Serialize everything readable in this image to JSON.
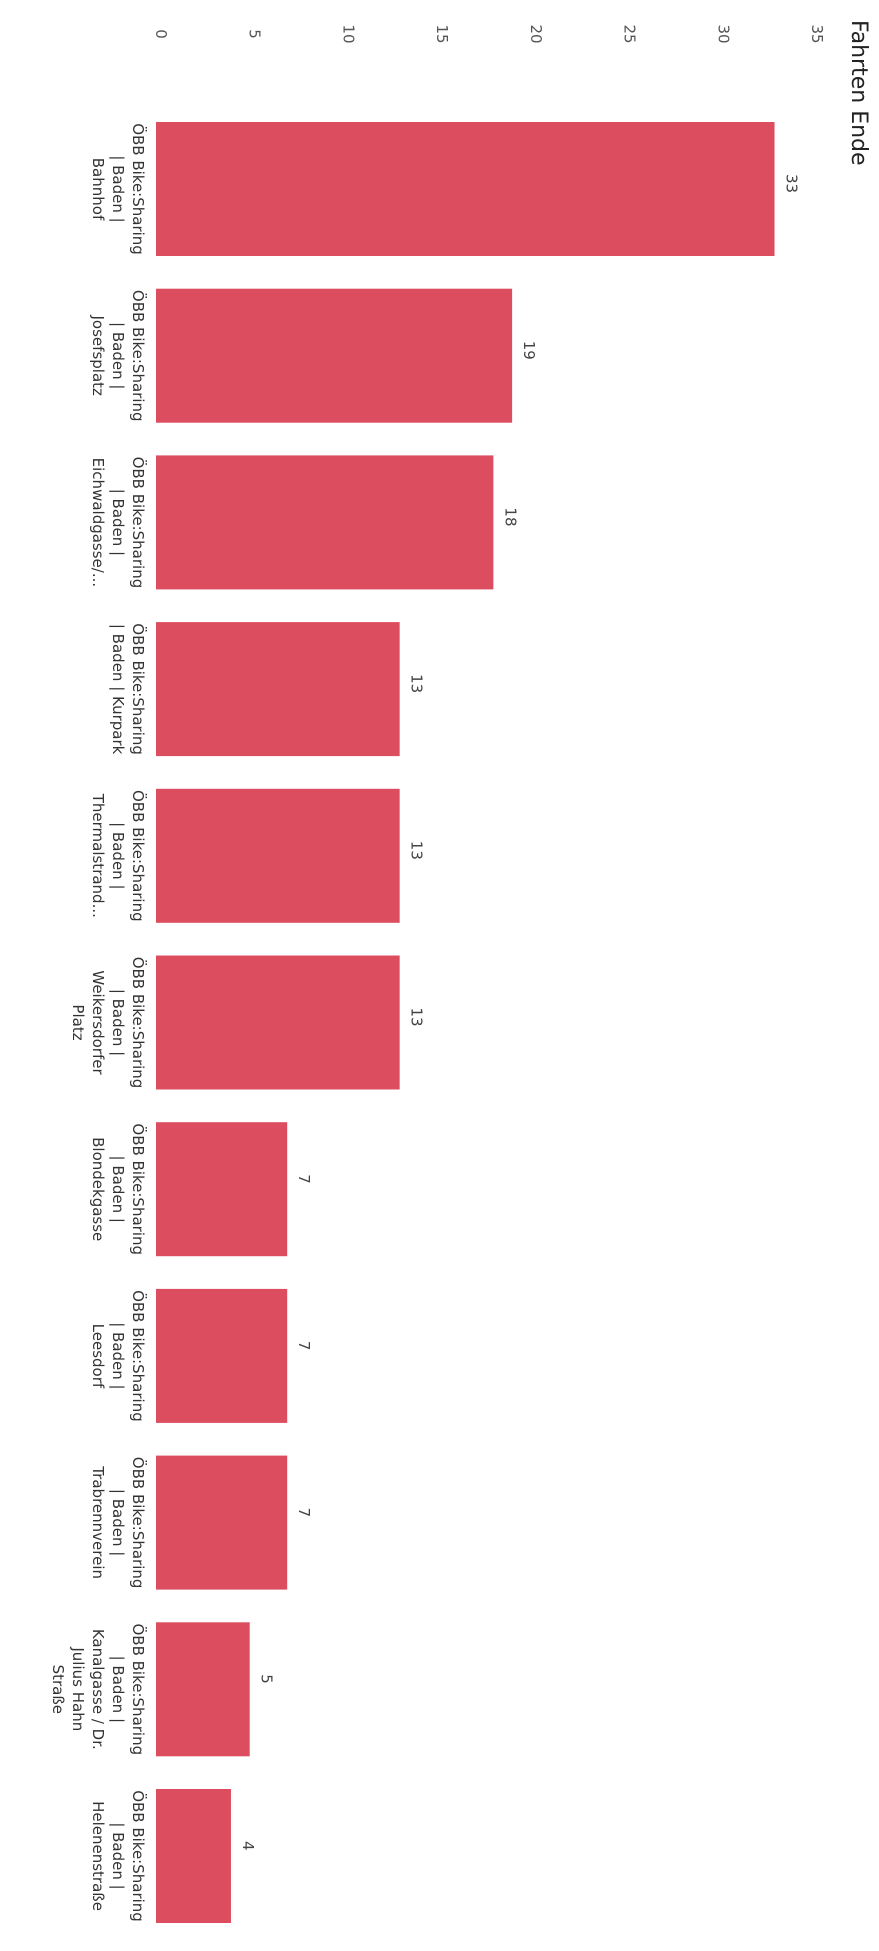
{
  "chart_data": {
    "type": "bar",
    "title": "Fahrten Ende",
    "orientation": "horizontal-rotated",
    "categories": [
      [
        "ÖBB Bike:Sharing",
        "| Baden |",
        "Bahnhof"
      ],
      [
        "ÖBB Bike:Sharing",
        "| Baden |",
        "Josefsplatz"
      ],
      [
        "ÖBB Bike:Sharing",
        "| Baden |",
        "Eichwaldgasse/..."
      ],
      [
        "ÖBB Bike:Sharing",
        "| Baden | Kurpark"
      ],
      [
        "ÖBB Bike:Sharing",
        "| Baden |",
        "Thermalstrand..."
      ],
      [
        "ÖBB Bike:Sharing",
        "| Baden |",
        "Weikersdorfer",
        "Platz"
      ],
      [
        "ÖBB Bike:Sharing",
        "| Baden |",
        "Blondekgasse"
      ],
      [
        "ÖBB Bike:Sharing",
        "| Baden |",
        "Leesdorf"
      ],
      [
        "ÖBB Bike:Sharing",
        "| Baden |",
        "Trabrennverein"
      ],
      [
        "ÖBB Bike:Sharing",
        "| Baden |",
        "Kanalgasse / Dr.",
        "Julius Hahn",
        "Straße"
      ],
      [
        "ÖBB Bike:Sharing",
        "| Baden |",
        "Helenenstraße"
      ]
    ],
    "values": [
      33,
      19,
      18,
      13,
      13,
      13,
      7,
      7,
      7,
      5,
      4
    ],
    "data_labels": [
      "33",
      "19",
      "18",
      "13",
      "13",
      "13",
      "7",
      "7",
      "7",
      "5",
      "4"
    ],
    "value_axis": {
      "range": [
        0,
        35
      ],
      "ticks": [
        "0",
        "5",
        "10",
        "15",
        "20",
        "25",
        "30",
        "35"
      ]
    },
    "grid": false,
    "bar_color": "#dc4d5f"
  }
}
